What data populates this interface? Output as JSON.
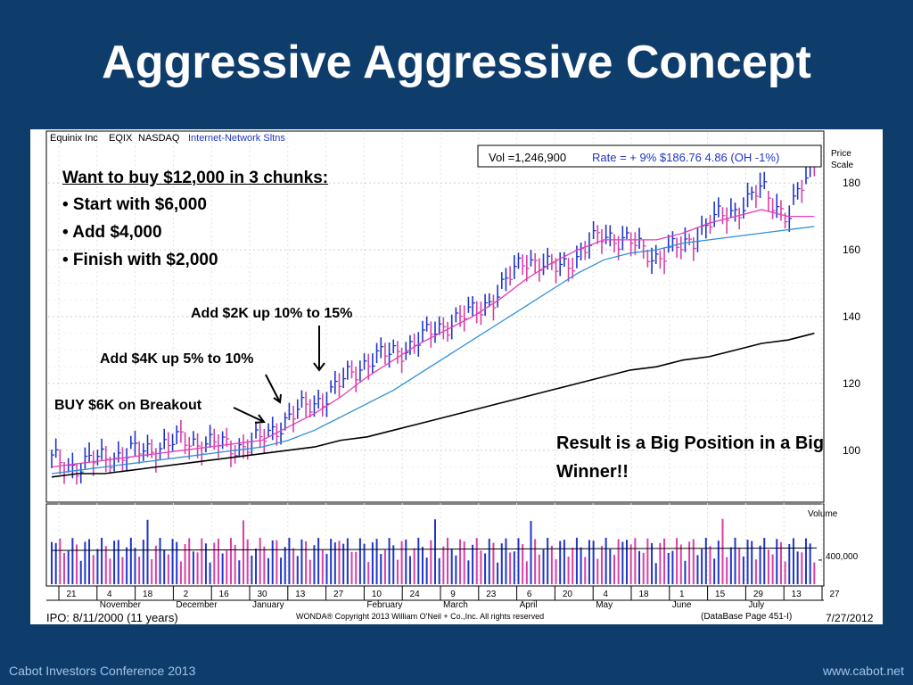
{
  "slide": {
    "title": "Aggressive Aggressive Concept",
    "footer_left": "Cabot Investors Conference 2013",
    "footer_right": "www.cabot.net"
  },
  "colors": {
    "background": "#0f3d6b",
    "up_bar": "#1f35c8",
    "down_bar": "#d83fa6",
    "ma_short": "#e23fb8",
    "ma_mid": "#2f8fd8",
    "ma_long": "#000000"
  },
  "chart_header": {
    "company": "Equinix Inc",
    "symbol": "EQIX",
    "exchange": "NASDAQ",
    "industry": "Internet-Network Sltns",
    "vol_text": "Vol =1,246,900",
    "rate_text": "Rate = + 9% $186.76  4.86 (OH -1%)"
  },
  "chart_footer": {
    "ipo": "IPO: 8/11/2000 (11 years)",
    "copyright": "WONDA® Copyright 2013 William O'Neil + Co.,Inc. All rights reserved",
    "database": "(DataBase Page 451-I)",
    "date": "7/27/2012"
  },
  "annotations": {
    "plan_title": "Want to buy $12,000 in 3 chunks:",
    "plan_items": [
      "• Start with $6,000",
      "• Add $4,000",
      "• Finish with $2,000"
    ],
    "buy_breakout": "BUY $6K on Breakout",
    "add_4k": "Add $4K up 5% to 10%",
    "add_2k": "Add $2K up 10% to 15%",
    "result": "Result is a Big Position in a Big Winner!!"
  },
  "chart_data": {
    "type": "line",
    "price_scale_label": "Price Scale",
    "price_ticks": [
      100,
      120,
      140,
      160,
      180
    ],
    "price_range": [
      85,
      195
    ],
    "volume_label": "Volume",
    "volume_tick_label": "400,000",
    "volume_tick_value": 400000,
    "volume_range": [
      0,
      1300000
    ],
    "date_ticks": [
      "21",
      "4",
      "18",
      "2",
      "16",
      "30",
      "13",
      "27",
      "10",
      "24",
      "9",
      "23",
      "6",
      "20",
      "4",
      "18",
      "1",
      "15",
      "29",
      "13",
      "27"
    ],
    "month_labels": [
      "November",
      "December",
      "January",
      "February",
      "March",
      "April",
      "May",
      "June",
      "July"
    ],
    "weekly_close_estimates": [
      97,
      95,
      98,
      99,
      101,
      103,
      102,
      101,
      103,
      110,
      114,
      120,
      127,
      129,
      133,
      138,
      141,
      147,
      158,
      154,
      158,
      165,
      162,
      158,
      161,
      168,
      172,
      178,
      170,
      186
    ],
    "series": [
      {
        "name": "short moving average",
        "values": [
          95,
          96,
          97,
          98,
          99,
          100,
          101,
          102,
          103,
          107,
          111,
          116,
          122,
          127,
          132,
          136,
          140,
          145,
          151,
          156,
          160,
          163,
          163,
          163,
          165,
          168,
          170,
          172,
          170,
          170
        ]
      },
      {
        "name": "mid moving average",
        "values": [
          93,
          94,
          95,
          96,
          97,
          98,
          99,
          100,
          101,
          103,
          106,
          110,
          114,
          118,
          123,
          128,
          133,
          138,
          143,
          148,
          153,
          157,
          159,
          160,
          162,
          163,
          164,
          165,
          166,
          167
        ]
      },
      {
        "name": "long moving average",
        "values": [
          92,
          93,
          93,
          94,
          95,
          96,
          97,
          98,
          99,
          100,
          101,
          103,
          104,
          106,
          108,
          110,
          112,
          114,
          116,
          118,
          120,
          122,
          124,
          125,
          127,
          128,
          130,
          132,
          133,
          135
        ]
      }
    ],
    "grid": true
  }
}
